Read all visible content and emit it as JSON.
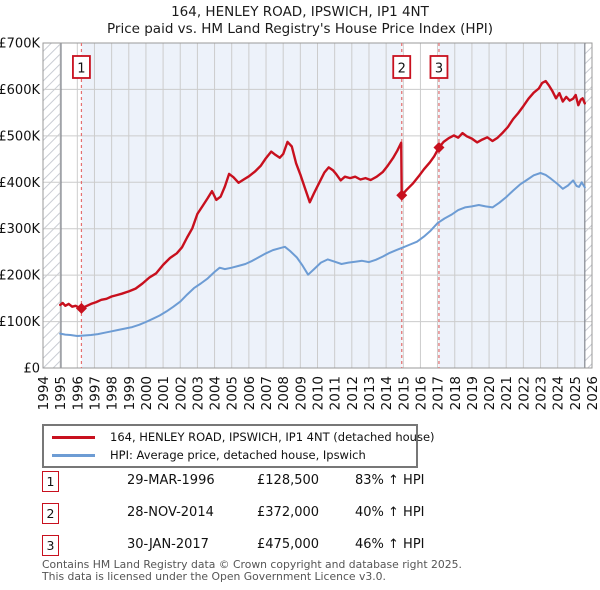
{
  "title": {
    "line1": "164, HENLEY ROAD, IPSWICH, IP1 4NT",
    "line2": "Price paid vs. HM Land Registry's House Price Index (HPI)"
  },
  "colors": {
    "red": "#c8101e",
    "blue": "#6d9cd4",
    "band": "#edf2fa",
    "grid": "#cccccc",
    "plot_border": "#999999",
    "hatch_line": "#c9ccd3",
    "hatch_edge": "#83878f",
    "sale_dash": "#e57070",
    "text": "#111111",
    "footer_text": "#555555"
  },
  "chart_data": {
    "type": "line",
    "title": "164, HENLEY ROAD, IPSWICH, IP1 4NT — Price paid vs. HM Land Registry's House Price Index (HPI)",
    "xlabel": "",
    "ylabel": "",
    "grid": true,
    "x_axis": {
      "min": 1994,
      "max": 2026,
      "tick_labels": [
        "1994",
        "1995",
        "1996",
        "1997",
        "1998",
        "1999",
        "2000",
        "2001",
        "2002",
        "2003",
        "2004",
        "2005",
        "2006",
        "2007",
        "2008",
        "2009",
        "2010",
        "2011",
        "2012",
        "2013",
        "2014",
        "2015",
        "2016",
        "2017",
        "2018",
        "2019",
        "2020",
        "2021",
        "2022",
        "2023",
        "2024",
        "2025",
        "2026"
      ]
    },
    "y_axis": {
      "min": 0,
      "max": 700000,
      "step": 100000,
      "tick_labels": [
        "£0",
        "£100K",
        "£200K",
        "£300K",
        "£400K",
        "£500K",
        "£600K",
        "£700K"
      ]
    },
    "background_bands": [
      {
        "from": 1994.0,
        "to": 1995.05,
        "style": "hatch"
      },
      {
        "from": 1995.05,
        "to": 1996.24,
        "style": "white"
      },
      {
        "from": 1996.24,
        "to": 2014.91,
        "style": "owned"
      },
      {
        "from": 2014.91,
        "to": 2017.08,
        "style": "white"
      },
      {
        "from": 2017.08,
        "to": 2025.58,
        "style": "owned"
      },
      {
        "from": 2025.58,
        "to": 2026.0,
        "style": "hatch"
      }
    ],
    "hatch_boundaries": [
      1995.05,
      2025.58
    ],
    "series": [
      {
        "name": "164, HENLEY ROAD, IPSWICH, IP1 4NT (detached house)",
        "color_key": "red",
        "stroke_width": 2.4,
        "units": "GBP_thousands",
        "points": [
          [
            1995.0,
            136
          ],
          [
            1995.15,
            140
          ],
          [
            1995.3,
            134
          ],
          [
            1995.5,
            138
          ],
          [
            1995.7,
            132
          ],
          [
            1995.9,
            134
          ],
          [
            1996.1,
            130
          ],
          [
            1996.24,
            128.5
          ],
          [
            1996.5,
            133
          ],
          [
            1996.8,
            138
          ],
          [
            1997.1,
            142
          ],
          [
            1997.4,
            147
          ],
          [
            1997.7,
            149
          ],
          [
            1998.0,
            154
          ],
          [
            1998.3,
            157
          ],
          [
            1998.6,
            160
          ],
          [
            1999.0,
            165
          ],
          [
            1999.4,
            171
          ],
          [
            1999.8,
            182
          ],
          [
            2000.2,
            195
          ],
          [
            2000.6,
            204
          ],
          [
            2001.0,
            222
          ],
          [
            2001.4,
            237
          ],
          [
            2001.8,
            247
          ],
          [
            2002.1,
            260
          ],
          [
            2002.4,
            281
          ],
          [
            2002.7,
            301
          ],
          [
            2003.0,
            332
          ],
          [
            2003.3,
            349
          ],
          [
            2003.6,
            366
          ],
          [
            2003.85,
            381
          ],
          [
            2004.1,
            362
          ],
          [
            2004.35,
            369
          ],
          [
            2004.6,
            391
          ],
          [
            2004.85,
            418
          ],
          [
            2005.1,
            411
          ],
          [
            2005.4,
            399
          ],
          [
            2005.7,
            406
          ],
          [
            2006.0,
            413
          ],
          [
            2006.35,
            423
          ],
          [
            2006.7,
            436
          ],
          [
            2007.0,
            452
          ],
          [
            2007.3,
            466
          ],
          [
            2007.55,
            459
          ],
          [
            2007.8,
            453
          ],
          [
            2008.0,
            461
          ],
          [
            2008.25,
            487
          ],
          [
            2008.5,
            477
          ],
          [
            2008.75,
            441
          ],
          [
            2009.0,
            417
          ],
          [
            2009.3,
            384
          ],
          [
            2009.55,
            357
          ],
          [
            2009.8,
            377
          ],
          [
            2010.1,
            399
          ],
          [
            2010.4,
            421
          ],
          [
            2010.65,
            432
          ],
          [
            2010.9,
            426
          ],
          [
            2011.1,
            417
          ],
          [
            2011.35,
            404
          ],
          [
            2011.6,
            412
          ],
          [
            2011.9,
            409
          ],
          [
            2012.2,
            412
          ],
          [
            2012.5,
            406
          ],
          [
            2012.8,
            409
          ],
          [
            2013.1,
            405
          ],
          [
            2013.45,
            412
          ],
          [
            2013.8,
            422
          ],
          [
            2014.1,
            436
          ],
          [
            2014.4,
            452
          ],
          [
            2014.65,
            468
          ],
          [
            2014.88,
            485
          ],
          [
            2014.91,
            372
          ],
          [
            2015.2,
            384
          ],
          [
            2015.55,
            397
          ],
          [
            2015.9,
            413
          ],
          [
            2016.2,
            428
          ],
          [
            2016.55,
            443
          ],
          [
            2016.8,
            456
          ],
          [
            2017.08,
            475
          ],
          [
            2017.35,
            487
          ],
          [
            2017.65,
            495
          ],
          [
            2017.95,
            501
          ],
          [
            2018.2,
            496
          ],
          [
            2018.45,
            506
          ],
          [
            2018.7,
            499
          ],
          [
            2019.0,
            494
          ],
          [
            2019.3,
            486
          ],
          [
            2019.6,
            492
          ],
          [
            2019.9,
            497
          ],
          [
            2020.2,
            489
          ],
          [
            2020.5,
            496
          ],
          [
            2020.8,
            507
          ],
          [
            2021.1,
            519
          ],
          [
            2021.4,
            536
          ],
          [
            2021.7,
            549
          ],
          [
            2022.0,
            564
          ],
          [
            2022.3,
            580
          ],
          [
            2022.6,
            593
          ],
          [
            2022.9,
            602
          ],
          [
            2023.1,
            614
          ],
          [
            2023.3,
            618
          ],
          [
            2023.5,
            608
          ],
          [
            2023.7,
            596
          ],
          [
            2023.9,
            581
          ],
          [
            2024.1,
            592
          ],
          [
            2024.3,
            574
          ],
          [
            2024.5,
            584
          ],
          [
            2024.7,
            576
          ],
          [
            2024.9,
            580
          ],
          [
            2025.05,
            588
          ],
          [
            2025.2,
            566
          ],
          [
            2025.35,
            578
          ],
          [
            2025.45,
            581
          ],
          [
            2025.58,
            570
          ]
        ]
      },
      {
        "name": "HPI: Average price, detached house, Ipswich",
        "color_key": "blue",
        "stroke_width": 2,
        "units": "GBP_thousands",
        "points": [
          [
            1995.0,
            74
          ],
          [
            1995.3,
            72
          ],
          [
            1995.6,
            71
          ],
          [
            1996.0,
            69
          ],
          [
            1996.4,
            70
          ],
          [
            1996.8,
            71
          ],
          [
            1997.2,
            73
          ],
          [
            1997.6,
            76
          ],
          [
            1998.0,
            79
          ],
          [
            1998.4,
            82
          ],
          [
            1998.8,
            85
          ],
          [
            1999.2,
            88
          ],
          [
            1999.6,
            93
          ],
          [
            2000.0,
            99
          ],
          [
            2000.4,
            106
          ],
          [
            2000.8,
            113
          ],
          [
            2001.2,
            122
          ],
          [
            2001.6,
            132
          ],
          [
            2002.0,
            143
          ],
          [
            2002.4,
            158
          ],
          [
            2002.8,
            172
          ],
          [
            2003.2,
            182
          ],
          [
            2003.6,
            193
          ],
          [
            2004.0,
            207
          ],
          [
            2004.3,
            216
          ],
          [
            2004.6,
            213
          ],
          [
            2005.0,
            216
          ],
          [
            2005.4,
            220
          ],
          [
            2005.8,
            224
          ],
          [
            2006.2,
            231
          ],
          [
            2006.6,
            239
          ],
          [
            2007.0,
            247
          ],
          [
            2007.4,
            254
          ],
          [
            2007.8,
            258
          ],
          [
            2008.1,
            261
          ],
          [
            2008.4,
            252
          ],
          [
            2008.8,
            238
          ],
          [
            2009.1,
            222
          ],
          [
            2009.45,
            201
          ],
          [
            2009.8,
            213
          ],
          [
            2010.2,
            227
          ],
          [
            2010.6,
            234
          ],
          [
            2011.0,
            229
          ],
          [
            2011.4,
            224
          ],
          [
            2011.8,
            227
          ],
          [
            2012.2,
            229
          ],
          [
            2012.6,
            231
          ],
          [
            2013.0,
            228
          ],
          [
            2013.4,
            233
          ],
          [
            2013.8,
            240
          ],
          [
            2014.2,
            248
          ],
          [
            2014.6,
            254
          ],
          [
            2015.0,
            260
          ],
          [
            2015.4,
            266
          ],
          [
            2015.8,
            272
          ],
          [
            2016.2,
            283
          ],
          [
            2016.6,
            296
          ],
          [
            2017.0,
            312
          ],
          [
            2017.4,
            322
          ],
          [
            2017.8,
            330
          ],
          [
            2018.2,
            340
          ],
          [
            2018.6,
            346
          ],
          [
            2019.0,
            348
          ],
          [
            2019.4,
            351
          ],
          [
            2019.8,
            348
          ],
          [
            2020.2,
            346
          ],
          [
            2020.6,
            356
          ],
          [
            2021.0,
            368
          ],
          [
            2021.4,
            382
          ],
          [
            2021.8,
            395
          ],
          [
            2022.2,
            405
          ],
          [
            2022.6,
            415
          ],
          [
            2023.0,
            420
          ],
          [
            2023.3,
            416
          ],
          [
            2023.6,
            408
          ],
          [
            2024.0,
            396
          ],
          [
            2024.3,
            386
          ],
          [
            2024.6,
            393
          ],
          [
            2024.9,
            404
          ],
          [
            2025.1,
            392
          ],
          [
            2025.25,
            390
          ],
          [
            2025.4,
            400
          ],
          [
            2025.58,
            389
          ]
        ]
      }
    ],
    "sales": [
      {
        "label": "1",
        "year": 1996.24,
        "price": 128500
      },
      {
        "label": "2",
        "year": 2014.91,
        "price": 372000
      },
      {
        "label": "3",
        "year": 2017.08,
        "price": 475000
      }
    ]
  },
  "legend": {
    "items": [
      {
        "label": "164, HENLEY ROAD, IPSWICH, IP1 4NT (detached house)",
        "color_key": "red"
      },
      {
        "label": "HPI: Average price, detached house, Ipswich",
        "color_key": "blue"
      }
    ]
  },
  "table": {
    "rows": [
      {
        "num": "1",
        "date": "29-MAR-1996",
        "price": "£128,500",
        "hpi": "83% ↑ HPI"
      },
      {
        "num": "2",
        "date": "28-NOV-2014",
        "price": "£372,000",
        "hpi": "40% ↑ HPI"
      },
      {
        "num": "3",
        "date": "30-JAN-2017",
        "price": "£475,000",
        "hpi": "46% ↑ HPI"
      }
    ]
  },
  "footer": {
    "line1": "Contains HM Land Registry data © Crown copyright and database right 2025.",
    "line2": "This data is licensed under the Open Government Licence v3.0."
  }
}
